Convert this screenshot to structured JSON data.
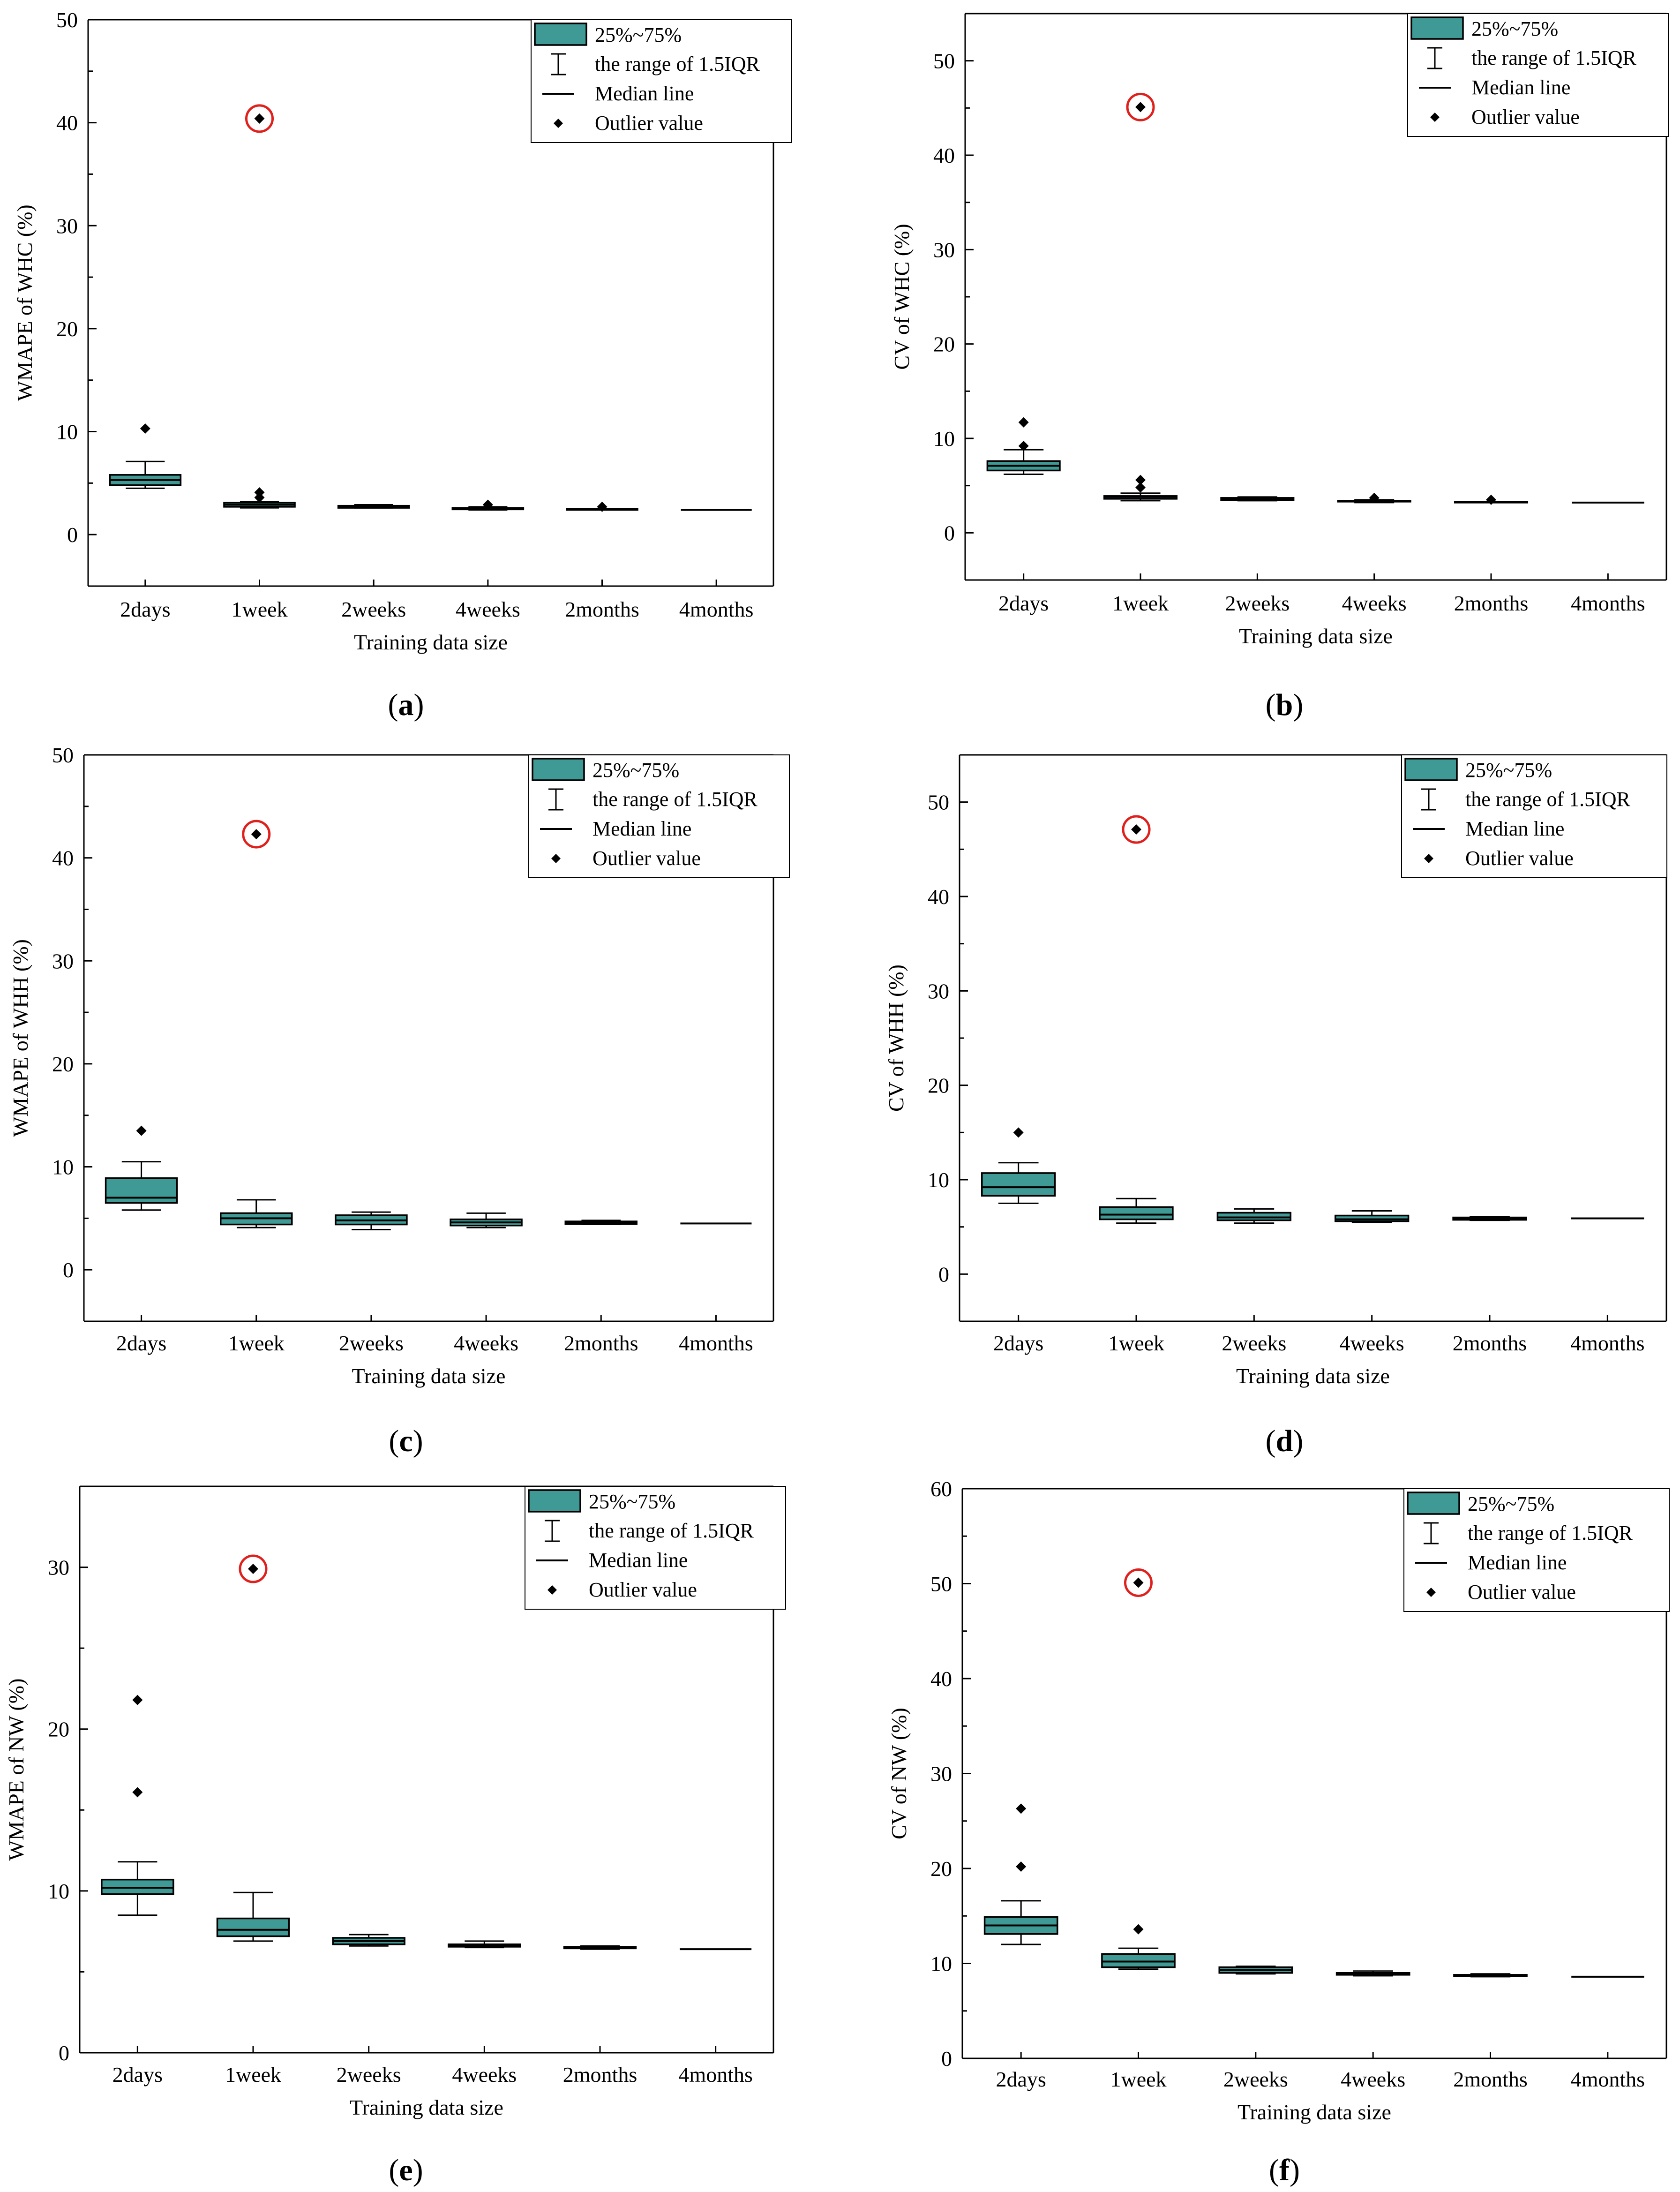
{
  "figure": {
    "panels": [
      "a",
      "b",
      "c",
      "d",
      "e",
      "f"
    ]
  },
  "legend": {
    "box_label": "25%~75%",
    "whisker_label": "the range of 1.5IQR",
    "median_label": "Median line",
    "outlier_label": "Outlier value"
  },
  "colors": {
    "box_fill": "#3f9a96",
    "outlier": "#000000",
    "highlight_circle": "#e0201c"
  },
  "chart_data": [
    {
      "id": "a",
      "type": "box",
      "panel_label": "a",
      "title": "",
      "xlabel": "Training data size",
      "ylabel": "WMAPE of WHC (%)",
      "categories": [
        "2days",
        "1week",
        "2weeks",
        "4weeks",
        "2months",
        "4months"
      ],
      "ylim": [
        -5,
        50
      ],
      "yticks": [
        0,
        10,
        20,
        30,
        40,
        50
      ],
      "legend_position": "top-right",
      "boxes": [
        {
          "whisker_low": 4.5,
          "q1": 4.8,
          "median": 5.3,
          "q3": 5.8,
          "whisker_high": 7.1,
          "outliers": [
            10.3
          ]
        },
        {
          "whisker_low": 2.6,
          "q1": 2.7,
          "median": 2.9,
          "q3": 3.1,
          "whisker_high": 3.2,
          "outliers": [
            3.6,
            4.1,
            40.4
          ]
        },
        {
          "whisker_low": 2.6,
          "q1": 2.6,
          "median": 2.7,
          "q3": 2.8,
          "whisker_high": 2.9,
          "outliers": []
        },
        {
          "whisker_low": 2.4,
          "q1": 2.45,
          "median": 2.5,
          "q3": 2.6,
          "whisker_high": 2.7,
          "outliers": [
            2.9
          ]
        },
        {
          "whisker_low": 2.4,
          "q1": 2.4,
          "median": 2.45,
          "q3": 2.5,
          "whisker_high": 2.5,
          "outliers": [
            2.7
          ]
        },
        {
          "whisker_low": 2.4,
          "q1": 2.4,
          "median": 2.4,
          "q3": 2.4,
          "whisker_high": 2.4,
          "outliers": []
        }
      ],
      "highlighted_outlier": {
        "category": "1week",
        "value": 40.4
      }
    },
    {
      "id": "b",
      "type": "box",
      "panel_label": "b",
      "title": "",
      "xlabel": "Training data size",
      "ylabel": "CV of WHC (%)",
      "categories": [
        "2days",
        "1week",
        "2weeks",
        "4weeks",
        "2months",
        "4months"
      ],
      "ylim": [
        -5,
        55
      ],
      "yticks": [
        0,
        10,
        20,
        30,
        40,
        50
      ],
      "legend_position": "top-right",
      "boxes": [
        {
          "whisker_low": 6.2,
          "q1": 6.6,
          "median": 7.1,
          "q3": 7.6,
          "whisker_high": 8.8,
          "outliers": [
            9.2,
            11.7
          ]
        },
        {
          "whisker_low": 3.4,
          "q1": 3.6,
          "median": 3.8,
          "q3": 3.9,
          "whisker_high": 4.2,
          "outliers": [
            4.8,
            5.6,
            45.1
          ]
        },
        {
          "whisker_low": 3.4,
          "q1": 3.45,
          "median": 3.55,
          "q3": 3.7,
          "whisker_high": 3.8,
          "outliers": []
        },
        {
          "whisker_low": 3.2,
          "q1": 3.3,
          "median": 3.35,
          "q3": 3.4,
          "whisker_high": 3.5,
          "outliers": [
            3.7
          ]
        },
        {
          "whisker_low": 3.2,
          "q1": 3.2,
          "median": 3.25,
          "q3": 3.3,
          "whisker_high": 3.3,
          "outliers": [
            3.5
          ]
        },
        {
          "whisker_low": 3.2,
          "q1": 3.2,
          "median": 3.2,
          "q3": 3.2,
          "whisker_high": 3.2,
          "outliers": []
        }
      ],
      "highlighted_outlier": {
        "category": "1week",
        "value": 45.1
      }
    },
    {
      "id": "c",
      "type": "box",
      "panel_label": "c",
      "title": "",
      "xlabel": "Training data size",
      "ylabel": "WMAPE of WHH (%)",
      "categories": [
        "2days",
        "1week",
        "2weeks",
        "4weeks",
        "2months",
        "4months"
      ],
      "ylim": [
        -5,
        50
      ],
      "yticks": [
        0,
        10,
        20,
        30,
        40,
        50
      ],
      "legend_position": "top-right",
      "boxes": [
        {
          "whisker_low": 5.8,
          "q1": 6.5,
          "median": 7.0,
          "q3": 8.9,
          "whisker_high": 10.5,
          "outliers": [
            13.5
          ]
        },
        {
          "whisker_low": 4.1,
          "q1": 4.4,
          "median": 5.0,
          "q3": 5.5,
          "whisker_high": 6.8,
          "outliers": [
            42.3
          ]
        },
        {
          "whisker_low": 3.9,
          "q1": 4.4,
          "median": 4.8,
          "q3": 5.3,
          "whisker_high": 5.6,
          "outliers": []
        },
        {
          "whisker_low": 4.1,
          "q1": 4.3,
          "median": 4.6,
          "q3": 4.9,
          "whisker_high": 5.5,
          "outliers": []
        },
        {
          "whisker_low": 4.4,
          "q1": 4.45,
          "median": 4.55,
          "q3": 4.7,
          "whisker_high": 4.8,
          "outliers": []
        },
        {
          "whisker_low": 4.5,
          "q1": 4.5,
          "median": 4.5,
          "q3": 4.5,
          "whisker_high": 4.5,
          "outliers": []
        }
      ],
      "highlighted_outlier": {
        "category": "1week",
        "value": 42.3
      }
    },
    {
      "id": "d",
      "type": "box",
      "panel_label": "d",
      "title": "",
      "xlabel": "Training data size",
      "ylabel": "CV of WHH (%)",
      "categories": [
        "2days",
        "1week",
        "2weeks",
        "4weeks",
        "2months",
        "4months"
      ],
      "ylim": [
        -5,
        55
      ],
      "yticks": [
        0,
        10,
        20,
        30,
        40,
        50
      ],
      "legend_position": "top-right",
      "boxes": [
        {
          "whisker_low": 7.5,
          "q1": 8.3,
          "median": 9.2,
          "q3": 10.7,
          "whisker_high": 11.8,
          "outliers": [
            15.0
          ]
        },
        {
          "whisker_low": 5.4,
          "q1": 5.8,
          "median": 6.3,
          "q3": 7.1,
          "whisker_high": 8.0,
          "outliers": [
            47.1
          ]
        },
        {
          "whisker_low": 5.4,
          "q1": 5.7,
          "median": 6.0,
          "q3": 6.5,
          "whisker_high": 6.9,
          "outliers": []
        },
        {
          "whisker_low": 5.5,
          "q1": 5.6,
          "median": 5.8,
          "q3": 6.2,
          "whisker_high": 6.7,
          "outliers": []
        },
        {
          "whisker_low": 5.7,
          "q1": 5.75,
          "median": 5.85,
          "q3": 6.0,
          "whisker_high": 6.1,
          "outliers": []
        },
        {
          "whisker_low": 5.9,
          "q1": 5.9,
          "median": 5.9,
          "q3": 5.9,
          "whisker_high": 5.9,
          "outliers": []
        }
      ],
      "highlighted_outlier": {
        "category": "1week",
        "value": 47.1
      }
    },
    {
      "id": "e",
      "type": "box",
      "panel_label": "e",
      "title": "",
      "xlabel": "Training data size",
      "ylabel": "WMAPE of NW (%)",
      "categories": [
        "2days",
        "1week",
        "2weeks",
        "4weeks",
        "2months",
        "4months"
      ],
      "ylim": [
        0,
        35
      ],
      "yticks": [
        0,
        10,
        20,
        30
      ],
      "legend_position": "top-right",
      "boxes": [
        {
          "whisker_low": 8.5,
          "q1": 9.8,
          "median": 10.2,
          "q3": 10.7,
          "whisker_high": 11.8,
          "outliers": [
            16.1,
            21.8
          ]
        },
        {
          "whisker_low": 6.9,
          "q1": 7.2,
          "median": 7.6,
          "q3": 8.3,
          "whisker_high": 9.9,
          "outliers": [
            29.9
          ]
        },
        {
          "whisker_low": 6.6,
          "q1": 6.7,
          "median": 6.9,
          "q3": 7.1,
          "whisker_high": 7.3,
          "outliers": []
        },
        {
          "whisker_low": 6.5,
          "q1": 6.55,
          "median": 6.6,
          "q3": 6.7,
          "whisker_high": 6.9,
          "outliers": []
        },
        {
          "whisker_low": 6.4,
          "q1": 6.45,
          "median": 6.5,
          "q3": 6.55,
          "whisker_high": 6.6,
          "outliers": []
        },
        {
          "whisker_low": 6.4,
          "q1": 6.4,
          "median": 6.4,
          "q3": 6.4,
          "whisker_high": 6.4,
          "outliers": []
        }
      ],
      "highlighted_outlier": {
        "category": "1week",
        "value": 29.9
      }
    },
    {
      "id": "f",
      "type": "box",
      "panel_label": "f",
      "title": "",
      "xlabel": "Training data size",
      "ylabel": "CV of NW (%)",
      "categories": [
        "2days",
        "1week",
        "2weeks",
        "4weeks",
        "2months",
        "4months"
      ],
      "ylim": [
        0,
        60
      ],
      "yticks": [
        0,
        10,
        20,
        30,
        40,
        50,
        60
      ],
      "legend_position": "top-right",
      "boxes": [
        {
          "whisker_low": 12.0,
          "q1": 13.1,
          "median": 14.0,
          "q3": 14.9,
          "whisker_high": 16.6,
          "outliers": [
            20.2,
            26.3
          ]
        },
        {
          "whisker_low": 9.4,
          "q1": 9.6,
          "median": 10.2,
          "q3": 11.0,
          "whisker_high": 11.6,
          "outliers": [
            13.6,
            50.1
          ]
        },
        {
          "whisker_low": 8.9,
          "q1": 9.0,
          "median": 9.3,
          "q3": 9.6,
          "whisker_high": 9.7,
          "outliers": []
        },
        {
          "whisker_low": 8.7,
          "q1": 8.8,
          "median": 8.9,
          "q3": 9.0,
          "whisker_high": 9.2,
          "outliers": []
        },
        {
          "whisker_low": 8.6,
          "q1": 8.65,
          "median": 8.7,
          "q3": 8.8,
          "whisker_high": 8.9,
          "outliers": []
        },
        {
          "whisker_low": 8.6,
          "q1": 8.6,
          "median": 8.6,
          "q3": 8.6,
          "whisker_high": 8.6,
          "outliers": []
        }
      ],
      "highlighted_outlier": {
        "category": "1week",
        "value": 50.1
      }
    }
  ]
}
